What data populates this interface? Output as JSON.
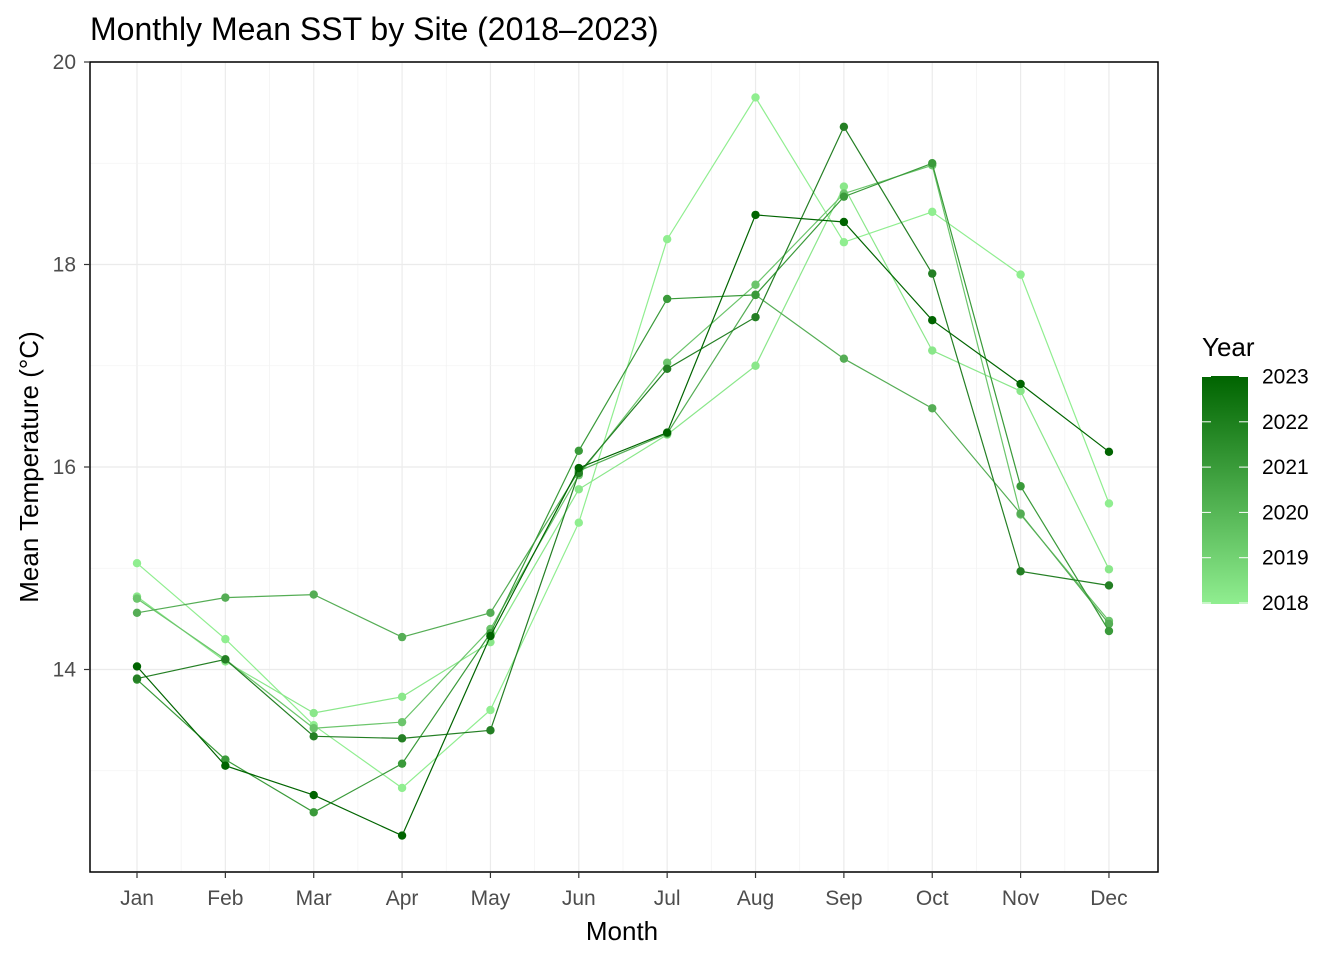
{
  "chart_data": {
    "type": "line",
    "title": "Monthly Mean SST by Site (2018–2023)",
    "xlabel": "Month",
    "ylabel": "Mean Temperature (°C)",
    "categories": [
      "Jan",
      "Feb",
      "Mar",
      "Apr",
      "May",
      "Jun",
      "Jul",
      "Aug",
      "Sep",
      "Oct",
      "Nov",
      "Dec"
    ],
    "ylim": [
      12.0,
      20.0
    ],
    "yticks": [
      "14",
      "16",
      "18",
      "20"
    ],
    "grid": true,
    "legend": {
      "title": "Year",
      "placement": "right",
      "type": "colorbar",
      "labels": [
        "2023",
        "2022",
        "2021",
        "2020",
        "2019",
        "2018"
      ],
      "low_color": "#90EE90",
      "high_color": "#006400"
    },
    "series": [
      {
        "year": 2018,
        "color": "#90EE90",
        "values": [
          15.05,
          14.3,
          13.45,
          12.83,
          13.6,
          15.45,
          18.25,
          19.65,
          18.22,
          18.52,
          17.9,
          15.64
        ]
      },
      {
        "year": 2018,
        "color": "#8ae78a",
        "values": [
          14.72,
          14.08,
          13.57,
          13.73,
          14.27,
          15.78,
          16.32,
          17.0,
          18.77,
          17.15,
          16.75,
          14.99
        ]
      },
      {
        "year": 2019,
        "color": "#6cc56c",
        "values": [
          14.7,
          14.1,
          13.42,
          13.48,
          14.4,
          15.92,
          17.03,
          17.8,
          18.7,
          18.98,
          15.53,
          14.48
        ]
      },
      {
        "year": 2020,
        "color": "#55ad55",
        "values": [
          14.56,
          14.71,
          14.74,
          14.32,
          14.56,
          15.96,
          16.33,
          17.7,
          17.07,
          16.58,
          15.54,
          14.45
        ]
      },
      {
        "year": 2021,
        "color": "#3a9a3a",
        "values": [
          13.9,
          13.11,
          12.59,
          13.07,
          14.36,
          16.16,
          17.66,
          17.7,
          18.67,
          19.0,
          15.81,
          14.38
        ]
      },
      {
        "year": 2022,
        "color": "#247f24",
        "values": [
          13.91,
          14.1,
          13.34,
          13.32,
          13.4,
          15.94,
          16.97,
          17.48,
          19.36,
          17.91,
          14.97,
          14.83
        ]
      },
      {
        "year": 2023,
        "color": "#006400",
        "values": [
          14.03,
          13.05,
          12.76,
          12.36,
          14.33,
          15.99,
          16.34,
          18.49,
          18.42,
          17.45,
          16.82,
          16.15
        ]
      }
    ]
  }
}
